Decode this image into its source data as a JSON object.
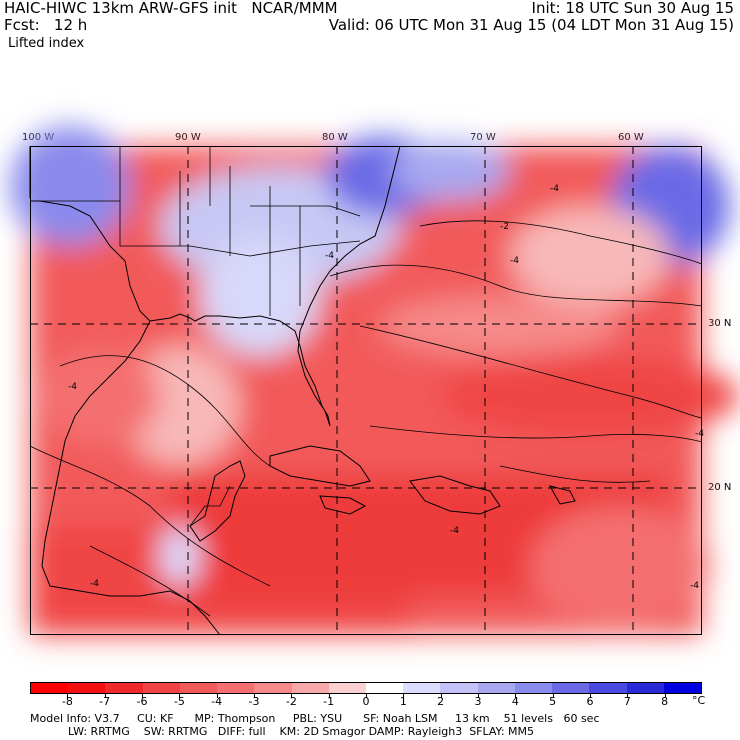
{
  "header": {
    "title": "HAIC-HIWC 13km ARW-GFS init   NCAR/MMM",
    "forecast": "Fcst:   12 h",
    "init": "Init: 18 UTC Sun 30 Aug 15",
    "valid": "Valid: 06 UTC Mon 31 Aug 15 (04 LDT Mon 31 Aug 15)",
    "field": "Lifted index"
  },
  "map": {
    "lon_labels": [
      "100 W",
      "90 W",
      "80 W",
      "70 W",
      "60 W"
    ],
    "lat_labels": [
      "30 N",
      "20 N"
    ],
    "contour_labels": [
      "-4",
      "-4",
      "-4",
      "-4",
      "-4",
      "-2",
      "-4",
      "-4",
      "-4"
    ]
  },
  "colorbar": {
    "labels": [
      "-8",
      "-7",
      "-6",
      "-5",
      "-4",
      "-3",
      "-2",
      "-1",
      "0",
      "1",
      "2",
      "3",
      "4",
      "5",
      "6",
      "7",
      "8"
    ],
    "unit": "°C",
    "colors": [
      "#ff0000",
      "#f21010",
      "#ee2a2a",
      "#f04444",
      "#f25a5a",
      "#f47070",
      "#f68a8a",
      "#f8a8a8",
      "#fbd0d0",
      "#ffffff",
      "#dcdcff",
      "#c2c2f8",
      "#a8a8f0",
      "#8a8aec",
      "#6a6ae6",
      "#4a4ae0",
      "#2a2ad8",
      "#0000e0"
    ]
  },
  "footer": {
    "line1": "Model Info: V3.7     CU: KF      MP: Thompson     PBL: YSU      SF: Noah LSM     13 km    51 levels   60 sec",
    "line2": "LW: RRTMG    SW: RRTMG   DIFF: full    KM: 2D Smagor DAMP: Rayleigh3  SFLAY: MM5"
  }
}
